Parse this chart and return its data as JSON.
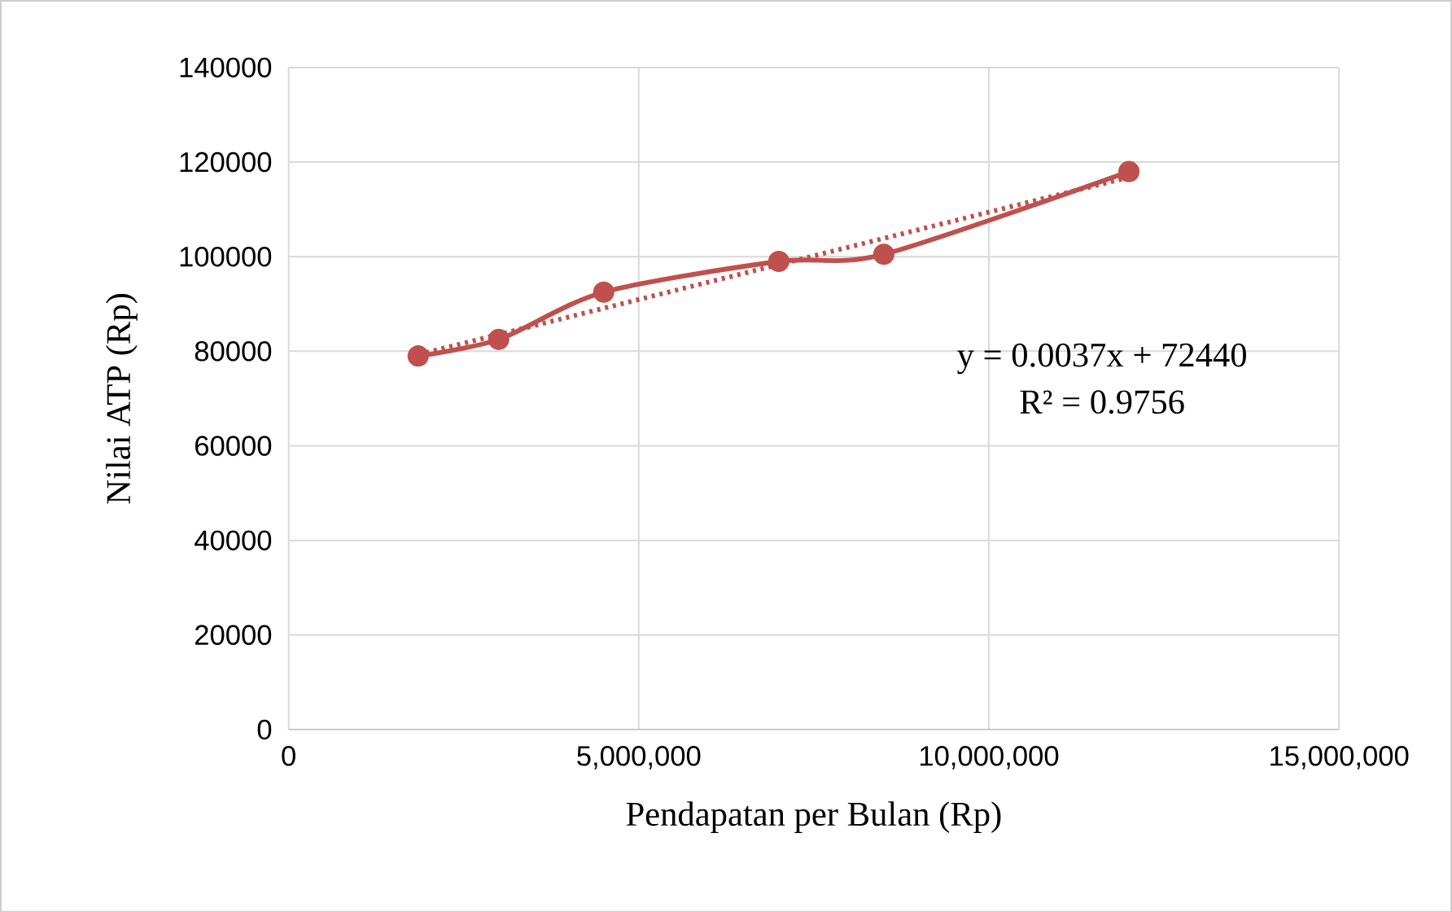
{
  "chart_data": {
    "type": "line",
    "xlabel": "Pendapatan per Bulan (Rp)",
    "ylabel": "Nilai ATP (Rp)",
    "series": [
      {
        "color": "#c0504d",
        "marker": "circle",
        "line_style": "solid",
        "x": [
          1850000,
          3000000,
          4500000,
          7000000,
          8500000,
          12000000
        ],
        "values": [
          79000,
          82500,
          92500,
          99000,
          100500,
          118000
        ]
      },
      {
        "type": "line",
        "color": "#c0504d",
        "marker": "none",
        "line_style": "dotted",
        "x": [
          1850000,
          12000000
        ],
        "values": [
          79300,
          116800
        ]
      }
    ],
    "xlim": [
      0,
      15000000
    ],
    "ylim": [
      0,
      140000
    ],
    "xticks": [
      0,
      {
        "value": 5000000,
        "label": "5,000,000"
      },
      {
        "value": 10000000,
        "label": "10,000,000"
      },
      {
        "value": 15000000,
        "label": "15,000,000"
      }
    ],
    "yticks": [
      0,
      20000,
      40000,
      60000,
      80000,
      100000,
      120000,
      140000
    ],
    "grid": true,
    "annotations": [
      "y = 0.0037x + 72440",
      "R² = 0.9756"
    ]
  }
}
